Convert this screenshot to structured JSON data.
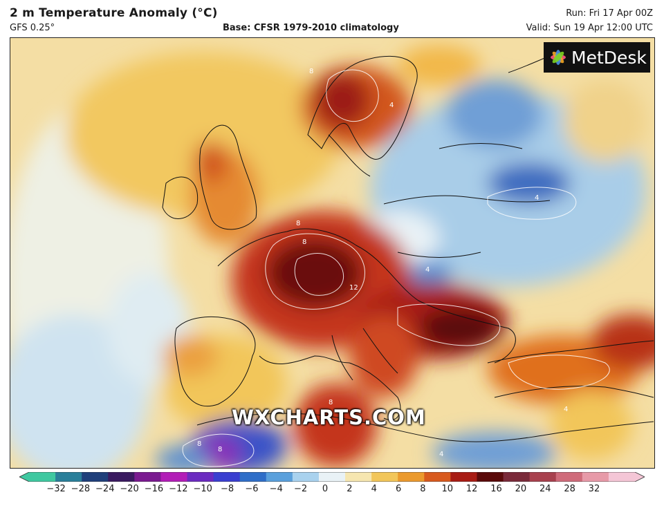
{
  "header": {
    "title": "2 m Temperature Anomaly (°C)",
    "model": "GFS 0.25°",
    "base": "Base: CFSR 1979-2010 climatology",
    "run": "Run: Fri 17 Apr 00Z",
    "valid": "Valid: Sun 19 Apr 12:00 UTC"
  },
  "map": {
    "logo_text": "MetDesk",
    "watermark": "WXCHARTS.COM",
    "contour_labels": [
      "8",
      "8",
      "4",
      "8",
      "12",
      "8",
      "4",
      "4",
      "8",
      "8",
      "4",
      "4"
    ]
  },
  "colorbar": {
    "tick_labels": [
      "−32",
      "−28",
      "−24",
      "−20",
      "−16",
      "−12",
      "−10",
      "−8",
      "−6",
      "−4",
      "−2",
      "0",
      "2",
      "4",
      "6",
      "8",
      "10",
      "12",
      "16",
      "20",
      "24",
      "28",
      "32"
    ],
    "colors": [
      "#3fc8a0",
      "#2a7f9a",
      "#1f3f7a",
      "#3a1a60",
      "#7a1a90",
      "#b21db7",
      "#6b2bc0",
      "#3a3fd0",
      "#2f6ec8",
      "#5aa0dc",
      "#a9d2ee",
      "#e9f2f6",
      "#f6e6b0",
      "#f2c65a",
      "#eb9a2e",
      "#d85a1e",
      "#a81c14",
      "#5a0a0a",
      "#7a2a3a",
      "#a8414e",
      "#cf6b7a",
      "#e79aa8",
      "#f4c6d6"
    ]
  }
}
